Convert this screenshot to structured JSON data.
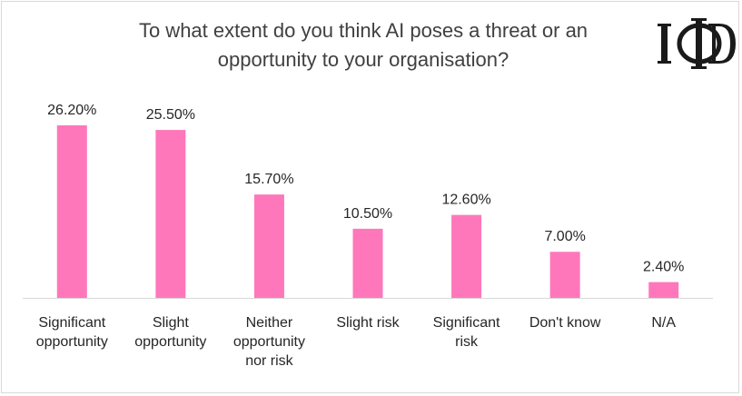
{
  "chart_data": {
    "type": "bar",
    "title": "To what extent do you think AI poses a threat or an opportunity to your organisation?",
    "categories": [
      "Significant opportunity",
      "Slight opportunity",
      "Neither opportunity nor risk",
      "Slight risk",
      "Significant risk",
      "Don't know",
      "N/A"
    ],
    "values": [
      26.2,
      25.5,
      15.7,
      10.5,
      12.6,
      7.0,
      2.4
    ],
    "data_labels": [
      "26.20%",
      "25.50%",
      "15.70%",
      "10.50%",
      "12.60%",
      "7.00%",
      "2.40%"
    ],
    "xlabel": "",
    "ylabel": "",
    "ylim": [
      0,
      26.2
    ],
    "grid": false,
    "legend": "none",
    "bar_color": "#ff77bb",
    "axis_color": "#d9d9d9"
  },
  "logo": {
    "text": "IoD",
    "color": "#1a1a1a"
  },
  "labels_display": [
    "Significant\nopportunity",
    "Slight\nopportunity",
    "Neither\nopportunity\nnor risk",
    "Slight risk",
    "Significant\nrisk",
    "Don't know",
    "N/A"
  ],
  "title_display": "To what extent do you think AI poses a threat or an\nopportunity to your organisation?"
}
